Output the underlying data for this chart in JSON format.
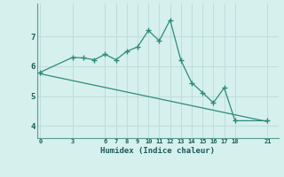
{
  "line1_x": [
    0,
    3,
    4,
    5,
    6,
    7,
    8,
    9,
    10,
    11,
    12,
    13,
    14,
    15,
    16,
    17,
    18,
    21
  ],
  "line1_y": [
    5.8,
    6.3,
    6.28,
    6.22,
    6.4,
    6.22,
    6.5,
    6.65,
    7.2,
    6.85,
    7.55,
    6.2,
    5.45,
    5.12,
    4.78,
    5.28,
    4.18,
    4.18
  ],
  "line2_x": [
    0,
    21
  ],
  "line2_y": [
    5.75,
    4.15
  ],
  "line_color": "#2e8b7a",
  "bg_color": "#d6f0ee",
  "grid_color": "#c0dedd",
  "xlabel": "Humidex (Indice chaleur)",
  "xticks": [
    0,
    3,
    6,
    7,
    8,
    9,
    10,
    11,
    12,
    13,
    14,
    15,
    16,
    17,
    18,
    21
  ],
  "yticks": [
    4,
    5,
    6,
    7
  ],
  "xlim": [
    -0.3,
    22.0
  ],
  "ylim": [
    3.6,
    8.1
  ]
}
